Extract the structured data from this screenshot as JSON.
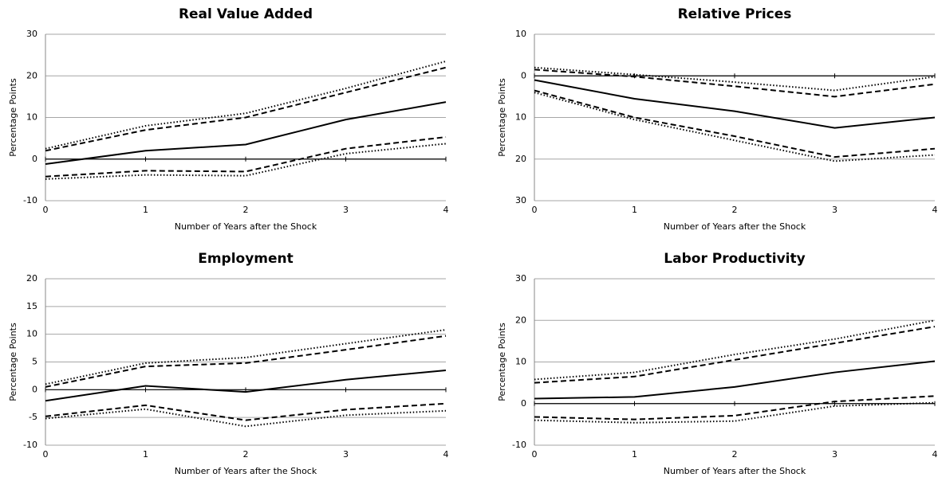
{
  "chart_data": [
    {
      "type": "line",
      "title": "Real Value Added",
      "x_label": "Number of Years after the Shock",
      "y_label": "Percentage Points",
      "x": [
        0,
        1,
        2,
        3,
        4
      ],
      "xlim": [
        0,
        4
      ],
      "xticks": [
        0,
        1,
        2,
        3,
        4
      ],
      "ylim": [
        -10,
        30
      ],
      "yticks": [
        -10,
        0,
        10,
        20,
        30
      ],
      "grid": true,
      "series": [
        {
          "color": "#000000",
          "dash": "solid",
          "values": [
            -1.2,
            2,
            3.5,
            9.5,
            13.7
          ]
        },
        {
          "color": "#000000",
          "dash": "dashed",
          "values": [
            2,
            7,
            10,
            16,
            22
          ]
        },
        {
          "color": "#000000",
          "dash": "dotted",
          "values": [
            2.5,
            8,
            11,
            17,
            23.5
          ]
        },
        {
          "color": "#000000",
          "dash": "dashed",
          "values": [
            -4.2,
            -2.8,
            -3,
            2.5,
            5.3
          ]
        },
        {
          "color": "#000000",
          "dash": "dotted",
          "values": [
            -4.8,
            -3.8,
            -4,
            1.3,
            3.7
          ]
        }
      ]
    },
    {
      "type": "line",
      "title": "Relative Prices",
      "x_label": "Number of Years after the Shock",
      "y_label": "Percentage Points",
      "x": [
        0,
        1,
        2,
        3,
        4
      ],
      "xlim": [
        0,
        4
      ],
      "xticks": [
        0,
        1,
        2,
        3,
        4
      ],
      "ylim": [
        -30,
        10
      ],
      "yticks": [
        {
          "value": -30,
          "label": "30"
        },
        {
          "value": -20,
          "label": "20"
        },
        {
          "value": -10,
          "label": "10"
        },
        0,
        10
      ],
      "grid": true,
      "series": [
        {
          "color": "#000000",
          "dash": "solid",
          "values": [
            -1,
            -5.5,
            -8.5,
            -12.5,
            -10
          ]
        },
        {
          "color": "#000000",
          "dash": "dashed",
          "values": [
            1.5,
            -0.2,
            -2.5,
            -5,
            -2
          ]
        },
        {
          "color": "#000000",
          "dash": "dotted",
          "values": [
            2,
            0.3,
            -1.5,
            -3.5,
            -0.2
          ]
        },
        {
          "color": "#000000",
          "dash": "dashed",
          "values": [
            -3.5,
            -10,
            -14.5,
            -19.5,
            -17.5
          ]
        },
        {
          "color": "#000000",
          "dash": "dotted",
          "values": [
            -4,
            -10.5,
            -15.5,
            -20.5,
            -19
          ]
        }
      ]
    },
    {
      "type": "line",
      "title": "Employment",
      "x_label": "Number of Years after the Shock",
      "y_label": "Percentage Points",
      "x": [
        0,
        1,
        2,
        3,
        4
      ],
      "xlim": [
        0,
        4
      ],
      "xticks": [
        0,
        1,
        2,
        3,
        4
      ],
      "ylim": [
        -10,
        20
      ],
      "yticks": [
        -10,
        -5,
        0,
        5,
        10,
        15,
        20
      ],
      "grid": true,
      "series": [
        {
          "color": "#000000",
          "dash": "solid",
          "values": [
            -2,
            0.7,
            -0.4,
            1.8,
            3.5
          ]
        },
        {
          "color": "#000000",
          "dash": "dashed",
          "values": [
            0.5,
            4.2,
            4.8,
            7.2,
            9.7
          ]
        },
        {
          "color": "#000000",
          "dash": "dotted",
          "values": [
            1,
            4.8,
            5.8,
            8.3,
            10.8
          ]
        },
        {
          "color": "#000000",
          "dash": "dashed",
          "values": [
            -4.8,
            -2.8,
            -5.5,
            -3.6,
            -2.5
          ]
        },
        {
          "color": "#000000",
          "dash": "dotted",
          "values": [
            -5.2,
            -3.5,
            -6.6,
            -4.6,
            -3.8
          ]
        }
      ]
    },
    {
      "type": "line",
      "title": "Labor Productivity",
      "x_label": "Number of Years after the Shock",
      "y_label": "Percentage Points",
      "x": [
        0,
        1,
        2,
        3,
        4
      ],
      "xlim": [
        0,
        4
      ],
      "xticks": [
        0,
        1,
        2,
        3,
        4
      ],
      "ylim": [
        -10,
        30
      ],
      "yticks": [
        -10,
        0,
        10,
        20,
        30
      ],
      "grid": true,
      "series": [
        {
          "color": "#000000",
          "dash": "solid",
          "values": [
            1.2,
            1.6,
            4,
            7.5,
            10.2
          ]
        },
        {
          "color": "#000000",
          "dash": "dashed",
          "values": [
            5,
            6.5,
            10.5,
            14.5,
            18.5
          ]
        },
        {
          "color": "#000000",
          "dash": "dotted",
          "values": [
            5.8,
            7.5,
            11.8,
            15.5,
            20
          ]
        },
        {
          "color": "#000000",
          "dash": "dashed",
          "values": [
            -3.2,
            -3.8,
            -2.9,
            0.5,
            1.8
          ]
        },
        {
          "color": "#000000",
          "dash": "dotted",
          "values": [
            -4,
            -4.6,
            -4.2,
            -0.6,
            0.2
          ]
        }
      ]
    }
  ]
}
